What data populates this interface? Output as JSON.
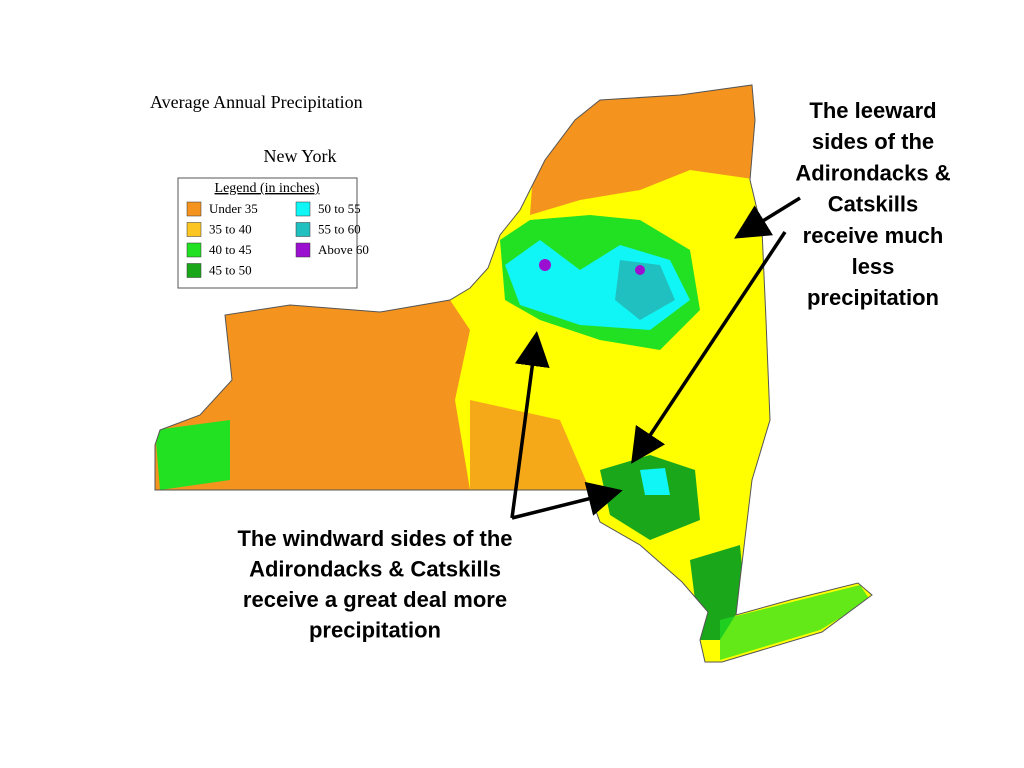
{
  "map": {
    "title": "Average Annual Precipitation",
    "subtitle": "New York",
    "legend": {
      "title": "Legend (in inches)",
      "items": [
        {
          "label": "Under 35",
          "color": "#f4931e"
        },
        {
          "label": "35 to 40",
          "color": "#fcc521"
        },
        {
          "label": "40 to 45",
          "color": "#22e022"
        },
        {
          "label": "45 to 50",
          "color": "#1aa81a"
        },
        {
          "label": "50 to 55",
          "color": "#10f5f5"
        },
        {
          "label": "55 to 60",
          "color": "#20c0c0"
        },
        {
          "label": "Above 60",
          "color": "#9b10d0"
        }
      ]
    }
  },
  "annotations": [
    {
      "lines": [
        "The leeward",
        "sides of the",
        "Adirondacks &",
        "Catskills",
        "receive much",
        "less",
        "precipitation"
      ]
    },
    {
      "lines": [
        "The windward sides of the",
        "Adirondacks & Catskills",
        "receive a great deal more",
        "precipitation"
      ]
    }
  ]
}
